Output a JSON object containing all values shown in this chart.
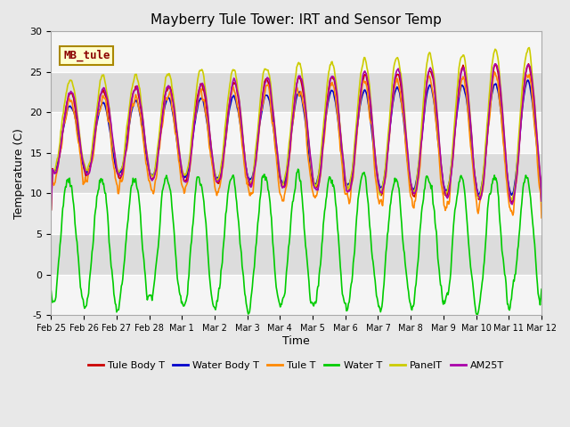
{
  "title": "Mayberry Tule Tower: IRT and Sensor Temp",
  "xlabel": "Time",
  "ylabel": "Temperature (C)",
  "ylim": [
    -5,
    30
  ],
  "label_box": "MB_tule",
  "background_color": "#e8e8e8",
  "series": {
    "Tule Body T": {
      "color": "#cc0000",
      "lw": 1.2
    },
    "Water Body T": {
      "color": "#0000cc",
      "lw": 1.2
    },
    "Tule T": {
      "color": "#ff8800",
      "lw": 1.2
    },
    "Water T": {
      "color": "#00cc00",
      "lw": 1.2
    },
    "PanelT": {
      "color": "#cccc00",
      "lw": 1.2
    },
    "AM25T": {
      "color": "#aa00aa",
      "lw": 1.2
    }
  },
  "xtick_labels": [
    "Feb 25",
    "Feb 26",
    "Feb 27",
    "Feb 28",
    "Mar 1",
    "Mar 2",
    "Mar 3",
    "Mar 4",
    "Mar 5",
    "Mar 6",
    "Mar 7",
    "Mar 8",
    "Mar 9",
    "Mar 10",
    "Mar 11",
    "Mar 12"
  ],
  "ytick_vals": [
    -5,
    0,
    5,
    10,
    15,
    20,
    25,
    30
  ],
  "n_days": 15,
  "pts_per_day": 48
}
